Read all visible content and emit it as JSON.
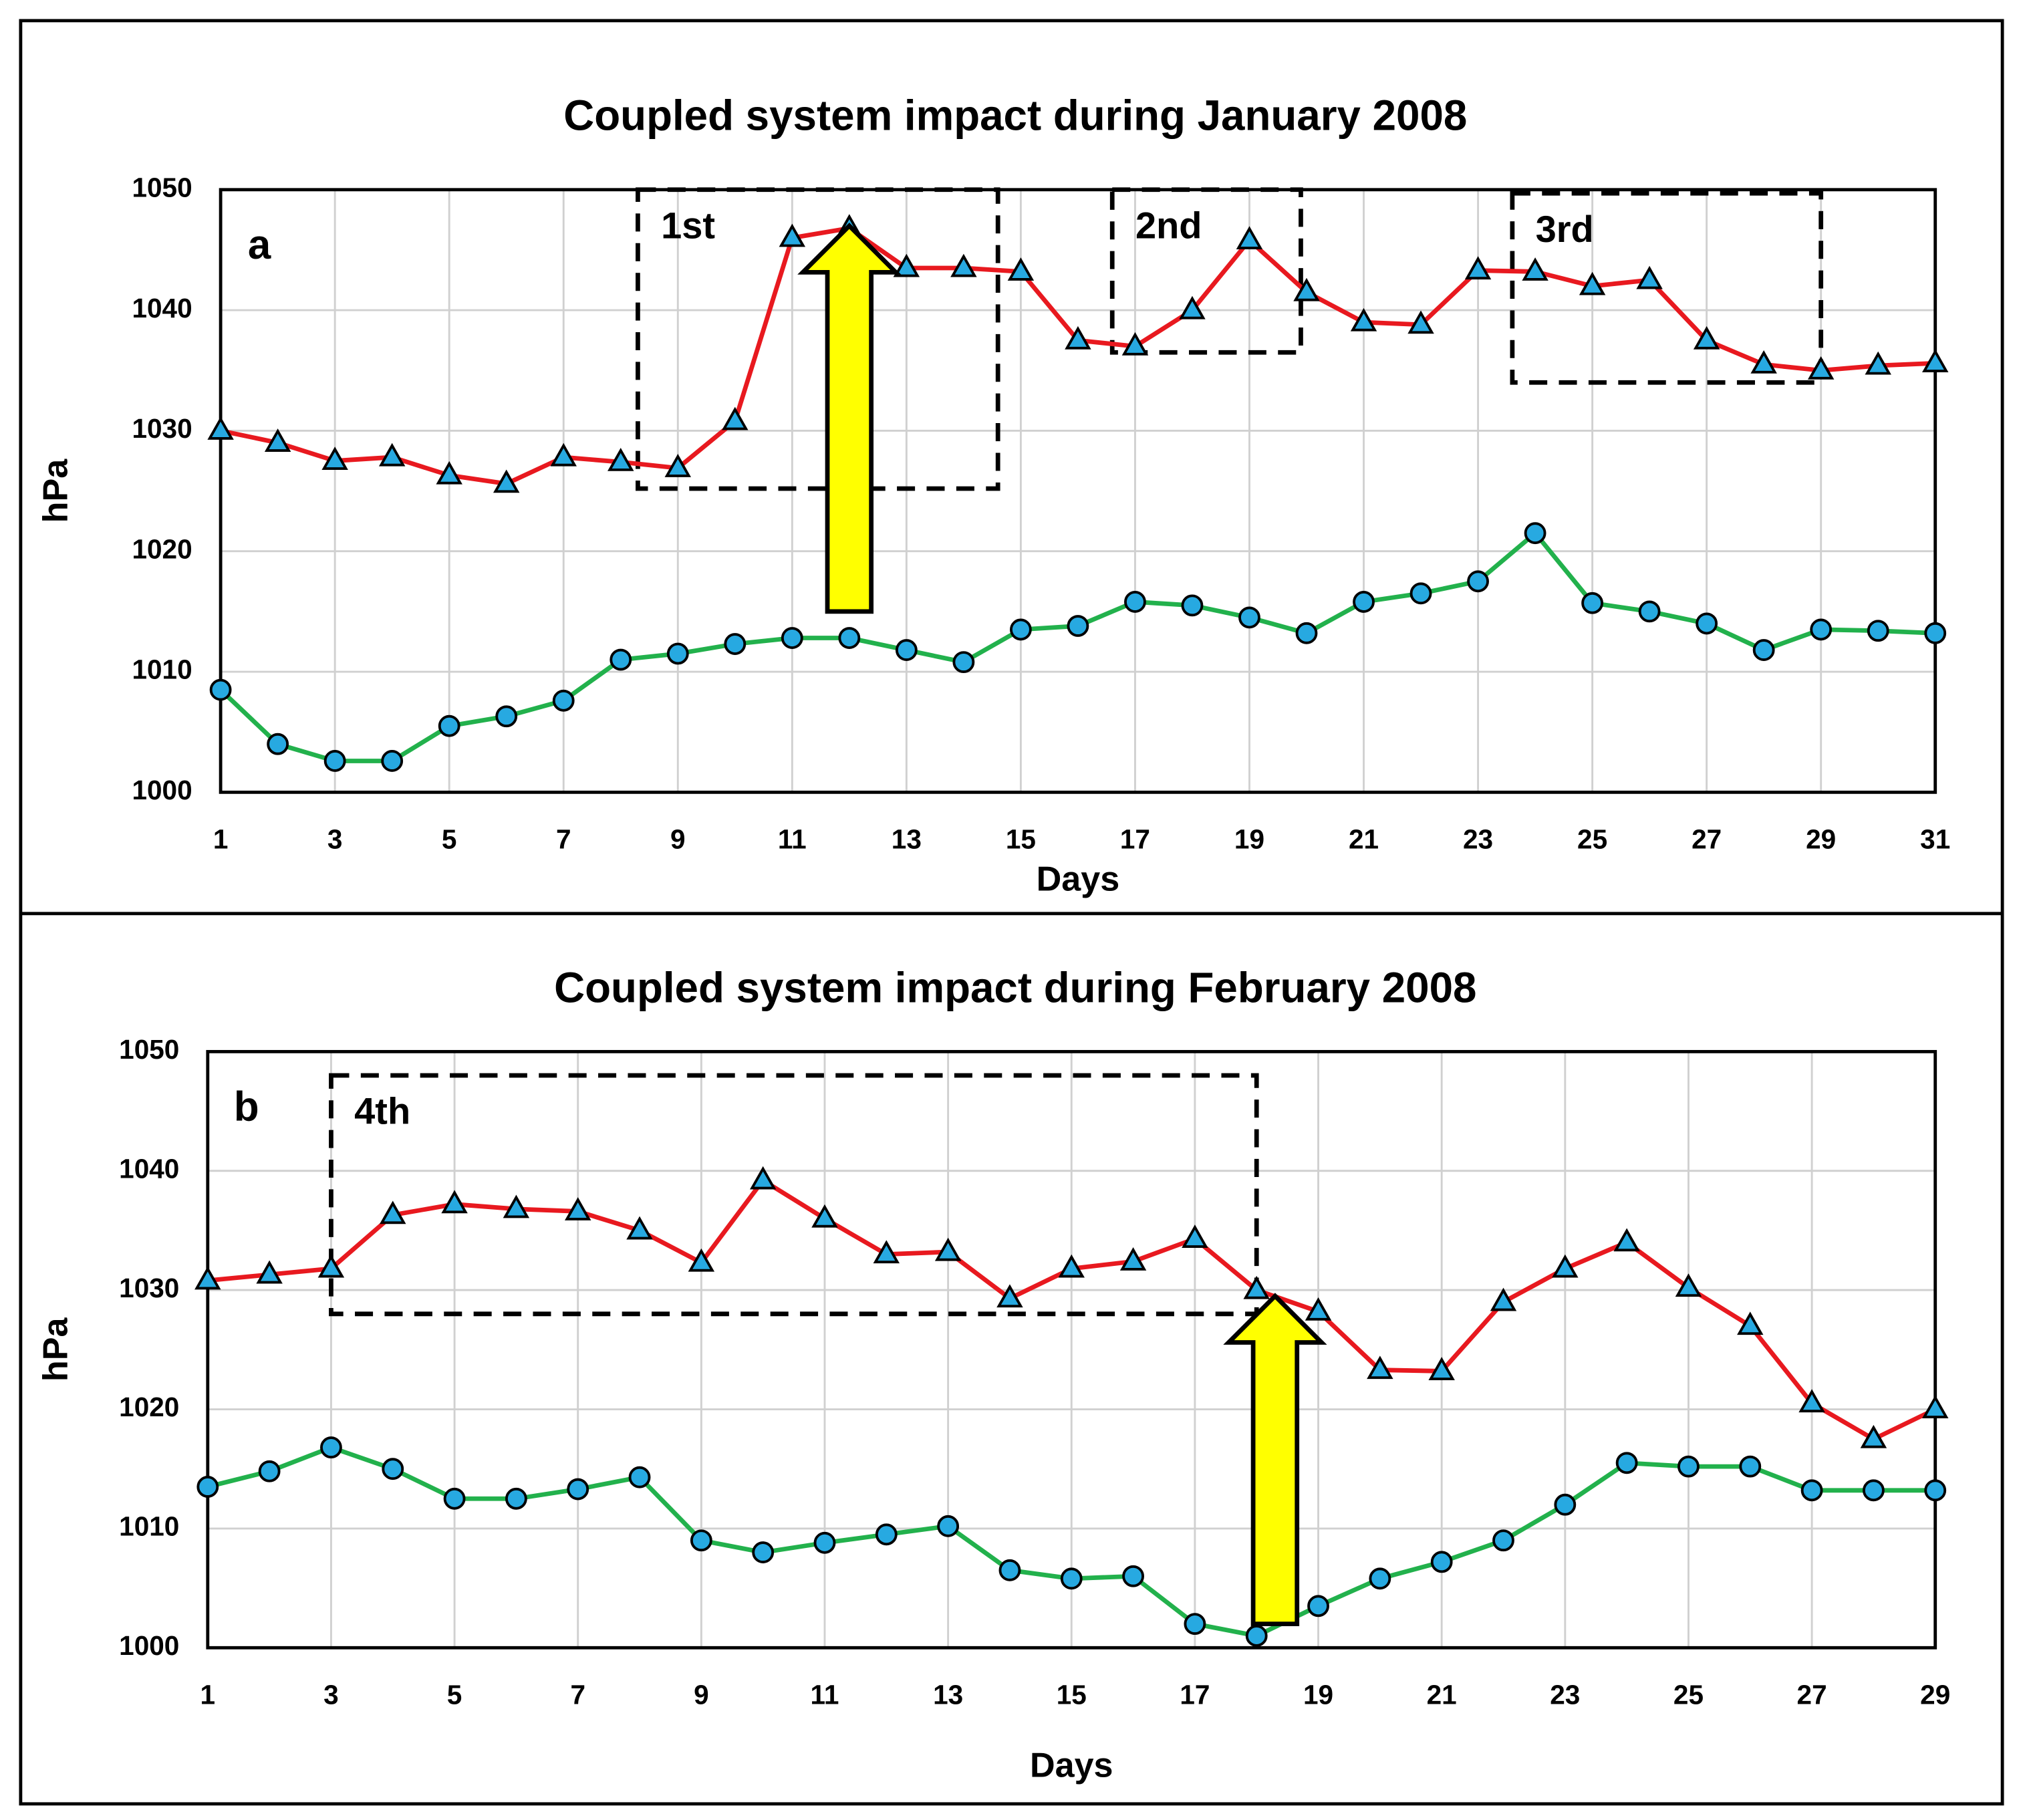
{
  "chart_data": [
    {
      "type": "line",
      "title": "Coupled system impact during January 2008",
      "panel_label": "a",
      "x_label": "Days",
      "y_label": "hPa",
      "x": [
        1,
        2,
        3,
        4,
        5,
        6,
        7,
        8,
        9,
        10,
        11,
        12,
        13,
        14,
        15,
        16,
        17,
        18,
        19,
        20,
        21,
        22,
        23,
        24,
        25,
        26,
        27,
        28,
        29,
        30,
        31
      ],
      "xlim": [
        1,
        31
      ],
      "xticks": [
        1,
        3,
        5,
        7,
        9,
        11,
        13,
        15,
        17,
        19,
        21,
        23,
        25,
        27,
        29,
        31
      ],
      "ylim": [
        1000,
        1050
      ],
      "yticks": [
        1000,
        1010,
        1020,
        1030,
        1040,
        1050
      ],
      "grid": true,
      "series": [
        {
          "color": "#e8191f",
          "marker": "triangle",
          "marker_color": "#27a9e1",
          "values": [
            1030,
            1029,
            1027.5,
            1027.8,
            1026.3,
            1025.6,
            1027.8,
            1027.4,
            1026.9,
            1030.8,
            1046,
            1046.8,
            1043.5,
            1043.5,
            1043.2,
            1037.5,
            1037,
            1040,
            1045.8,
            1041.5,
            1039,
            1038.8,
            1043.3,
            1043.2,
            1042,
            1042.5,
            1037.5,
            1035.5,
            1035,
            1035.4,
            1035.6
          ]
        },
        {
          "color": "#22b14c",
          "marker": "circle",
          "marker_color": "#27a9e1",
          "values": [
            1008.5,
            1004,
            1002.6,
            1002.6,
            1005.5,
            1006.3,
            1007.6,
            1011,
            1011.5,
            1012.3,
            1012.8,
            1012.8,
            1011.8,
            1010.8,
            1013.5,
            1013.8,
            1015.8,
            1015.5,
            1014.5,
            1013.2,
            1015.8,
            1016.5,
            1017.5,
            1021.5,
            1015.7,
            1015,
            1014,
            1011.8,
            1013.5,
            1013.4,
            1013.2
          ]
        }
      ],
      "boxes": [
        {
          "label": "1st",
          "x": [
            8.3,
            14.6
          ],
          "y": [
            1025.2,
            1050
          ]
        },
        {
          "label": "2nd",
          "x": [
            16.6,
            19.9
          ],
          "y": [
            1036.5,
            1050
          ]
        },
        {
          "label": "3rd",
          "x": [
            23.6,
            29
          ],
          "y": [
            1034,
            1049.7
          ]
        }
      ],
      "arrows": [
        {
          "x": 12,
          "y": [
            1015,
            1047
          ]
        }
      ]
    },
    {
      "type": "line",
      "title": "Coupled system impact during February 2008",
      "panel_label": "b",
      "x_label": "Days",
      "y_label": "hPa",
      "x": [
        1,
        2,
        3,
        4,
        5,
        6,
        7,
        8,
        9,
        10,
        11,
        12,
        13,
        14,
        15,
        16,
        17,
        18,
        19,
        20,
        21,
        22,
        23,
        24,
        25,
        26,
        27,
        28,
        29
      ],
      "xlim": [
        1,
        29
      ],
      "xticks": [
        1,
        3,
        5,
        7,
        9,
        11,
        13,
        15,
        17,
        19,
        21,
        23,
        25,
        27,
        29
      ],
      "ylim": [
        1000,
        1050
      ],
      "yticks": [
        1000,
        1010,
        1020,
        1030,
        1040,
        1050
      ],
      "grid": true,
      "series": [
        {
          "color": "#e8191f",
          "marker": "triangle",
          "marker_color": "#27a9e1",
          "values": [
            1030.8,
            1031.3,
            1031.8,
            1036.3,
            1037.2,
            1036.8,
            1036.6,
            1035,
            1032.3,
            1039.2,
            1036,
            1033,
            1033.2,
            1029.3,
            1031.8,
            1032.4,
            1034.3,
            1030,
            1028.2,
            1023.3,
            1023.2,
            1029,
            1031.8,
            1034,
            1030.2,
            1027,
            1020.5,
            1017.5,
            1020
          ]
        },
        {
          "color": "#22b14c",
          "marker": "circle",
          "marker_color": "#27a9e1",
          "values": [
            1013.5,
            1014.8,
            1016.8,
            1015,
            1012.5,
            1012.5,
            1013.3,
            1014.3,
            1009,
            1008,
            1008.8,
            1009.5,
            1010.2,
            1006.5,
            1005.8,
            1006,
            1002,
            1001,
            1003.5,
            1005.8,
            1007.2,
            1009,
            1012,
            1015.5,
            1015.2,
            1015.2,
            1013.2,
            1013.2,
            1013.2
          ]
        }
      ],
      "boxes": [
        {
          "label": "4th",
          "x": [
            3,
            18
          ],
          "y": [
            1028,
            1048
          ]
        }
      ],
      "arrows": [
        {
          "x": 18.3,
          "y": [
            1002,
            1029.5
          ]
        }
      ]
    }
  ]
}
